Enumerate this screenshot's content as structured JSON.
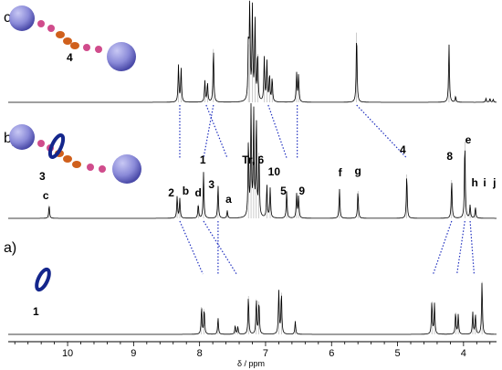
{
  "chart_data": {
    "type": "line",
    "xlabel": "δ / ppm",
    "xlim": [
      10.9,
      3.5
    ],
    "x_ticks": [
      10,
      9,
      8,
      7,
      6,
      5,
      4
    ],
    "x_tick_labels": [
      "10",
      "9",
      "8",
      "7",
      "6",
      "5",
      "4"
    ],
    "series": [
      {
        "name": "c)",
        "compound_label": "4",
        "peaks": [
          {
            "x": 8.32,
            "h": 0.38
          },
          {
            "x": 8.28,
            "h": 0.35
          },
          {
            "x": 7.92,
            "h": 0.22
          },
          {
            "x": 7.88,
            "h": 0.2
          },
          {
            "x": 7.79,
            "h": 0.55
          },
          {
            "x": 7.26,
            "h": 0.6
          },
          {
            "x": 7.24,
            "h": 1.0
          },
          {
            "x": 7.2,
            "h": 0.95
          },
          {
            "x": 7.16,
            "h": 0.85
          },
          {
            "x": 7.12,
            "h": 0.5
          },
          {
            "x": 7.02,
            "h": 0.45
          },
          {
            "x": 6.98,
            "h": 0.42
          },
          {
            "x": 6.94,
            "h": 0.28
          },
          {
            "x": 6.9,
            "h": 0.25
          },
          {
            "x": 6.53,
            "h": 0.3
          },
          {
            "x": 6.5,
            "h": 0.28
          },
          {
            "x": 5.62,
            "h": 0.72
          },
          {
            "x": 4.22,
            "h": 0.6
          },
          {
            "x": 4.12,
            "h": 0.06
          },
          {
            "x": 3.66,
            "h": 0.04
          },
          {
            "x": 3.6,
            "h": 0.04
          },
          {
            "x": 3.55,
            "h": 0.03
          }
        ]
      },
      {
        "name": "b)",
        "compound_label": "3",
        "peaks": [
          {
            "x": 10.28,
            "h": 0.12
          },
          {
            "x": 8.34,
            "h": 0.2
          },
          {
            "x": 8.3,
            "h": 0.18
          },
          {
            "x": 8.02,
            "h": 0.13
          },
          {
            "x": 7.94,
            "h": 0.42
          },
          {
            "x": 7.72,
            "h": 0.3
          },
          {
            "x": 7.58,
            "h": 0.07
          },
          {
            "x": 7.26,
            "h": 0.7
          },
          {
            "x": 7.22,
            "h": 1.0
          },
          {
            "x": 7.18,
            "h": 0.95
          },
          {
            "x": 7.14,
            "h": 0.9
          },
          {
            "x": 7.1,
            "h": 0.6
          },
          {
            "x": 6.98,
            "h": 0.3
          },
          {
            "x": 6.93,
            "h": 0.27
          },
          {
            "x": 6.68,
            "h": 0.25
          },
          {
            "x": 6.53,
            "h": 0.22
          },
          {
            "x": 6.5,
            "h": 0.2
          },
          {
            "x": 5.88,
            "h": 0.27
          },
          {
            "x": 5.6,
            "h": 0.25
          },
          {
            "x": 4.86,
            "h": 0.4
          },
          {
            "x": 4.18,
            "h": 0.35
          },
          {
            "x": 3.98,
            "h": 0.7
          },
          {
            "x": 3.9,
            "h": 0.12
          },
          {
            "x": 3.82,
            "h": 0.1
          }
        ]
      },
      {
        "name": "a)",
        "compound_label": "1",
        "peaks": [
          {
            "x": 7.97,
            "h": 0.25
          },
          {
            "x": 7.93,
            "h": 0.23
          },
          {
            "x": 7.72,
            "h": 0.15
          },
          {
            "x": 7.46,
            "h": 0.08
          },
          {
            "x": 7.42,
            "h": 0.07
          },
          {
            "x": 7.26,
            "h": 0.35
          },
          {
            "x": 7.14,
            "h": 0.32
          },
          {
            "x": 7.1,
            "h": 0.3
          },
          {
            "x": 6.8,
            "h": 0.4
          },
          {
            "x": 6.76,
            "h": 0.38
          },
          {
            "x": 6.55,
            "h": 0.12
          },
          {
            "x": 4.48,
            "h": 0.3
          },
          {
            "x": 4.44,
            "h": 0.28
          },
          {
            "x": 4.12,
            "h": 0.2
          },
          {
            "x": 4.08,
            "h": 0.18
          },
          {
            "x": 3.86,
            "h": 0.2
          },
          {
            "x": 3.82,
            "h": 0.18
          },
          {
            "x": 3.72,
            "h": 0.48
          }
        ]
      }
    ],
    "peak_labels": [
      {
        "text": "c",
        "x": 10.33
      },
      {
        "text": "2",
        "x": 8.43
      },
      {
        "text": "b",
        "x": 8.21
      },
      {
        "text": "d",
        "x": 8.02
      },
      {
        "text": "1",
        "x": 7.95
      },
      {
        "text": "3",
        "x": 7.82
      },
      {
        "text": "a",
        "x": 7.56
      },
      {
        "text": "Tr, 6",
        "x": 7.19
      },
      {
        "text": "10",
        "x": 6.87
      },
      {
        "text": "5",
        "x": 6.73
      },
      {
        "text": "9",
        "x": 6.45
      },
      {
        "text": "f",
        "x": 5.87
      },
      {
        "text": "g",
        "x": 5.6
      },
      {
        "text": "4",
        "x": 4.92
      },
      {
        "text": "8",
        "x": 4.21
      },
      {
        "text": "e",
        "x": 3.93
      },
      {
        "text": "h",
        "x": 3.83
      },
      {
        "text": "i",
        "x": 3.68
      },
      {
        "text": "j",
        "x": 3.53
      }
    ],
    "correlations": [
      {
        "from_trace": "c)",
        "from_x": 8.3,
        "to_trace": "b)",
        "to_x": 8.3
      },
      {
        "from_trace": "c)",
        "from_x": 7.9,
        "to_trace": "b)",
        "to_x": 7.58
      },
      {
        "from_trace": "c)",
        "from_x": 7.79,
        "to_trace": "b)",
        "to_x": 7.94
      },
      {
        "from_trace": "c)",
        "from_x": 6.96,
        "to_trace": "b)",
        "to_x": 6.68
      },
      {
        "from_trace": "c)",
        "from_x": 6.52,
        "to_trace": "b)",
        "to_x": 6.52
      },
      {
        "from_trace": "c)",
        "from_x": 5.62,
        "to_trace": "b)",
        "to_x": 4.86
      },
      {
        "from_trace": "b)",
        "from_x": 8.3,
        "to_trace": "a)",
        "to_x": 7.95
      },
      {
        "from_trace": "b)",
        "from_x": 7.94,
        "to_trace": "a)",
        "to_x": 7.44
      },
      {
        "from_trace": "b)",
        "from_x": 7.72,
        "to_trace": "a)",
        "to_x": 7.72
      },
      {
        "from_trace": "b)",
        "from_x": 3.98,
        "to_trace": "a)",
        "to_x": 4.1
      },
      {
        "from_trace": "b)",
        "from_x": 3.9,
        "to_trace": "a)",
        "to_x": 3.84
      },
      {
        "from_trace": "b)",
        "from_x": 4.18,
        "to_trace": "a)",
        "to_x": 4.46
      }
    ],
    "colors": {
      "spectrum": "#000000",
      "correlation": "#1f2fbf",
      "ring": "#14268c",
      "stopper": "#8a8ad8",
      "axle_orange": "#d0601c",
      "axle_pink": "#d04c8c"
    }
  }
}
